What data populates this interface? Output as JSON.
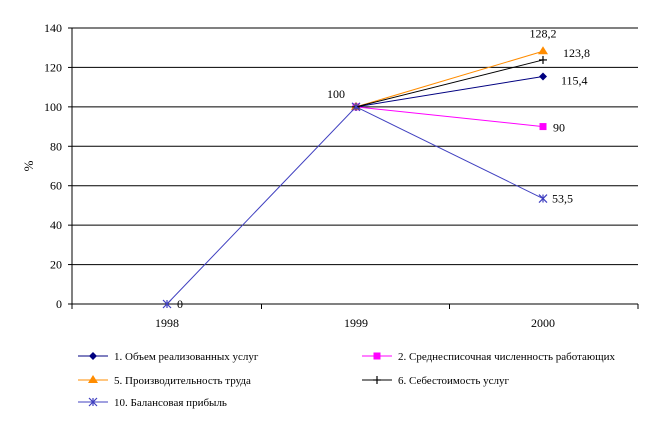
{
  "chart_data": {
    "type": "line",
    "title": "",
    "xlabel": "",
    "ylabel": "%",
    "categories": [
      "1998",
      "1999",
      "2000"
    ],
    "ylim": [
      0,
      140
    ],
    "yticks": [
      0,
      20,
      40,
      60,
      80,
      100,
      120,
      140
    ],
    "grid": "horizontal",
    "legend_position": "bottom",
    "series": [
      {
        "name": "1. Объем реализованных услуг",
        "color": "#000080",
        "marker": "diamond",
        "values": [
          null,
          100,
          115.4
        ],
        "labels": [
          "",
          "",
          "115,4"
        ]
      },
      {
        "name": "2. Среднесписочная численность работающих",
        "color": "#ff00ff",
        "marker": "square",
        "values": [
          null,
          100,
          90
        ],
        "labels": [
          "",
          "",
          "90"
        ]
      },
      {
        "name": "5. Производительность труда",
        "color": "#ff8c00",
        "marker": "triangle",
        "values": [
          null,
          100,
          128.2
        ],
        "labels": [
          "",
          "",
          "128,2"
        ]
      },
      {
        "name": "6. Себестоимость услуг",
        "color": "#000000",
        "marker": "star",
        "values": [
          null,
          100,
          123.8
        ],
        "labels": [
          "",
          "",
          "123,8"
        ]
      },
      {
        "name": "10. Балансовая прибыль",
        "color": "#4040c0",
        "marker": "asterisk",
        "values": [
          0,
          100,
          53.5
        ],
        "labels": [
          "0",
          "",
          "53,5"
        ]
      }
    ],
    "annotations": [
      {
        "category": "1999",
        "value": 100,
        "text": "100"
      }
    ]
  }
}
